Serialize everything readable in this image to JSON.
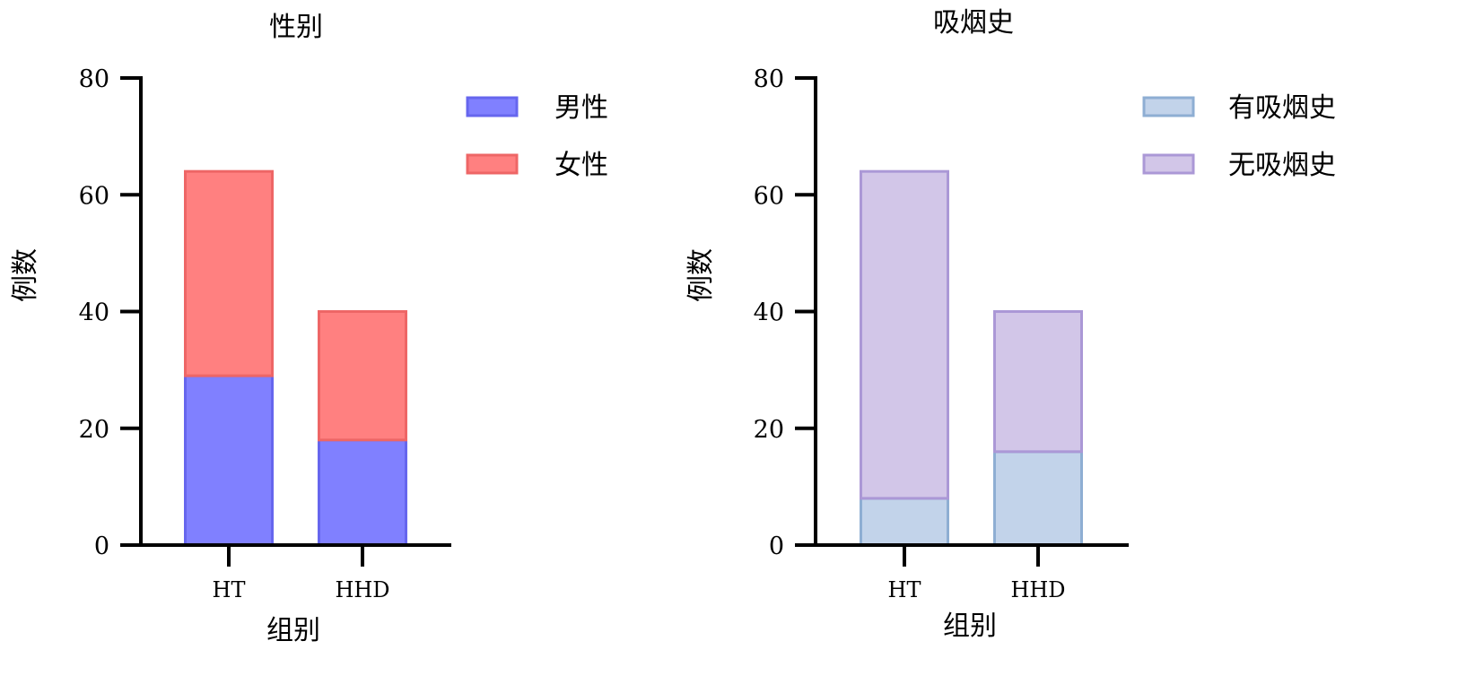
{
  "chart_data": [
    {
      "type": "bar",
      "stacked": true,
      "title": "性别",
      "xlabel": "组别",
      "ylabel": "例数",
      "categories": [
        "HT",
        "HHD"
      ],
      "ylim": [
        0,
        80
      ],
      "yticks": [
        0,
        20,
        40,
        60,
        80
      ],
      "legend_position": "top-right",
      "series": [
        {
          "name": "男性",
          "values": [
            29,
            18
          ],
          "color": "#8080ff",
          "stroke": "#6666ee"
        },
        {
          "name": "女性",
          "values": [
            35,
            22
          ],
          "color": "#ff8080",
          "stroke": "#ee6666"
        }
      ]
    },
    {
      "type": "bar",
      "stacked": true,
      "title": "吸烟史",
      "xlabel": "组别",
      "ylabel": "例数",
      "categories": [
        "HT",
        "HHD"
      ],
      "ylim": [
        0,
        80
      ],
      "yticks": [
        0,
        20,
        40,
        60,
        80
      ],
      "legend_position": "top-right",
      "series": [
        {
          "name": "有吸烟史",
          "values": [
            8,
            16
          ],
          "color": "#c2d3ea",
          "stroke": "#8eaed3"
        },
        {
          "name": "无吸烟史",
          "values": [
            56,
            24
          ],
          "color": "#d2c6e8",
          "stroke": "#ab98d6"
        }
      ]
    }
  ]
}
